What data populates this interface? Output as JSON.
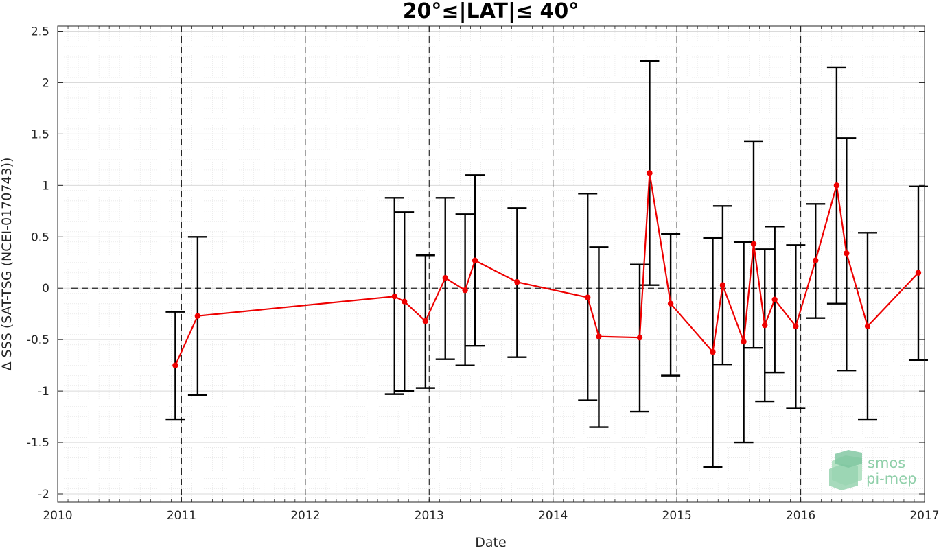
{
  "chart_data": {
    "type": "line",
    "title": "20°≤|LAT|≤ 40°",
    "xlabel": "Date",
    "ylabel": "Δ SSS (SAT-TSG (NCEI-0170743))",
    "x_ticks": [
      2010,
      2011,
      2012,
      2013,
      2014,
      2015,
      2016,
      2017
    ],
    "y_ticks": [
      2.5,
      2,
      1.5,
      1,
      0.5,
      0,
      -0.5,
      -1,
      -1.5,
      -2
    ],
    "y_tick_labels": [
      "2.5",
      "2",
      "1.5",
      "1",
      "0.5",
      "0",
      "-0.5",
      "-1",
      "-1.5",
      "-2"
    ],
    "xlim": [
      2010,
      2017
    ],
    "ylim": [
      -2.08,
      2.55
    ],
    "grid": true,
    "year_dashed_lines": [
      2011,
      2012,
      2013,
      2014,
      2015,
      2016
    ],
    "zero_line": 0,
    "series": [
      {
        "color": "#ee0000",
        "errorbar_color": "#000000",
        "points": [
          {
            "x": 2010.95,
            "y": -0.75,
            "lo": -1.28,
            "hi": -0.23
          },
          {
            "x": 2011.13,
            "y": -0.27,
            "lo": -1.04,
            "hi": 0.5
          },
          {
            "x": 2012.72,
            "y": -0.08,
            "lo": -1.03,
            "hi": 0.88
          },
          {
            "x": 2012.8,
            "y": -0.13,
            "lo": -1.0,
            "hi": 0.74
          },
          {
            "x": 2012.97,
            "y": -0.32,
            "lo": -0.97,
            "hi": 0.32
          },
          {
            "x": 2013.13,
            "y": 0.1,
            "lo": -0.69,
            "hi": 0.88
          },
          {
            "x": 2013.29,
            "y": -0.02,
            "lo": -0.75,
            "hi": 0.72
          },
          {
            "x": 2013.37,
            "y": 0.27,
            "lo": -0.56,
            "hi": 1.1
          },
          {
            "x": 2013.71,
            "y": 0.06,
            "lo": -0.67,
            "hi": 0.78
          },
          {
            "x": 2014.28,
            "y": -0.09,
            "lo": -1.09,
            "hi": 0.92
          },
          {
            "x": 2014.37,
            "y": -0.47,
            "lo": -1.35,
            "hi": 0.4
          },
          {
            "x": 2014.7,
            "y": -0.48,
            "lo": -1.2,
            "hi": 0.23
          },
          {
            "x": 2014.78,
            "y": 1.12,
            "lo": 0.03,
            "hi": 2.21
          },
          {
            "x": 2014.95,
            "y": -0.15,
            "lo": -0.85,
            "hi": 0.53
          },
          {
            "x": 2015.29,
            "y": -0.62,
            "lo": -1.74,
            "hi": 0.49
          },
          {
            "x": 2015.37,
            "y": 0.03,
            "lo": -0.74,
            "hi": 0.8
          },
          {
            "x": 2015.54,
            "y": -0.52,
            "lo": -1.5,
            "hi": 0.45
          },
          {
            "x": 2015.62,
            "y": 0.43,
            "lo": -0.58,
            "hi": 1.43
          },
          {
            "x": 2015.71,
            "y": -0.36,
            "lo": -1.1,
            "hi": 0.38
          },
          {
            "x": 2015.79,
            "y": -0.11,
            "lo": -0.82,
            "hi": 0.6
          },
          {
            "x": 2015.96,
            "y": -0.37,
            "lo": -1.17,
            "hi": 0.42
          },
          {
            "x": 2016.12,
            "y": 0.27,
            "lo": -0.29,
            "hi": 0.82
          },
          {
            "x": 2016.29,
            "y": 1.0,
            "lo": -0.15,
            "hi": 2.15
          },
          {
            "x": 2016.37,
            "y": 0.34,
            "lo": -0.8,
            "hi": 1.46
          },
          {
            "x": 2016.54,
            "y": -0.37,
            "lo": -1.28,
            "hi": 0.54
          },
          {
            "x": 2016.95,
            "y": 0.15,
            "lo": -0.7,
            "hi": 0.99
          }
        ]
      }
    ]
  },
  "logo": {
    "line1": "smos",
    "line2": "pi-mep",
    "color": "#8fcfa9"
  }
}
